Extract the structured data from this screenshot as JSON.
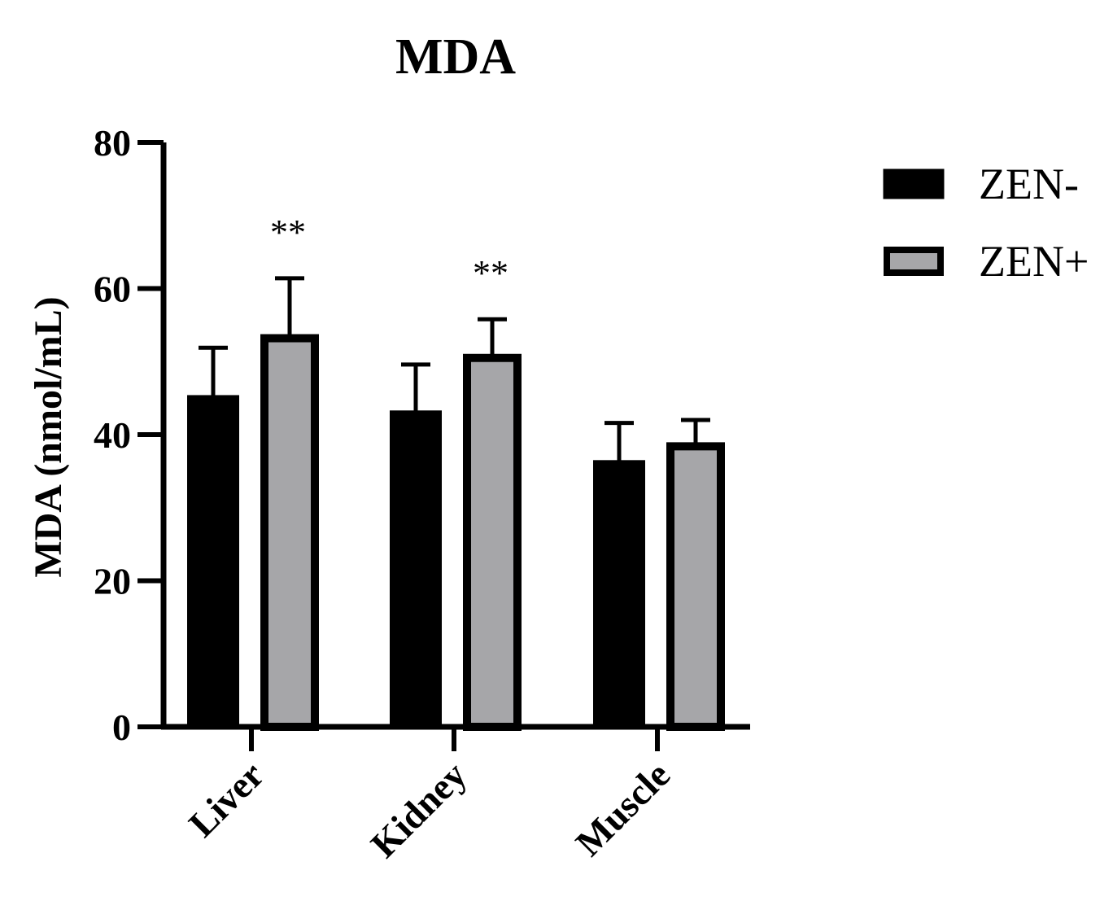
{
  "chart_data": {
    "type": "bar",
    "title": "MDA",
    "xlabel": "",
    "ylabel": "MDA (nmol/mL)",
    "categories": [
      "Liver",
      "Kidney",
      "Muscle"
    ],
    "ylim": [
      0,
      80
    ],
    "yticks": [
      0,
      20,
      40,
      60,
      80
    ],
    "series": [
      {
        "name": "ZEN-",
        "values": [
          45.3,
          43.2,
          36.4
        ],
        "errors": [
          6.6,
          6.4,
          5.2
        ],
        "color": "#000000"
      },
      {
        "name": "ZEN+",
        "values": [
          53.2,
          50.5,
          38.4
        ],
        "errors": [
          8.2,
          5.3,
          3.6
        ],
        "color": "#a6a6a9"
      }
    ],
    "annotations": [
      "**",
      "**",
      ""
    ],
    "legend": "right",
    "grid": false
  }
}
